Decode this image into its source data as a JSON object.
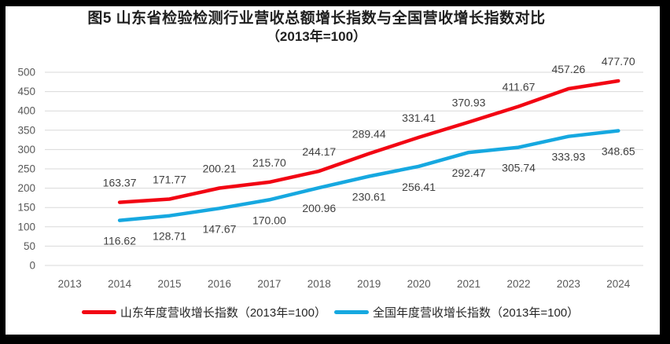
{
  "title": {
    "line1": "图5  山东省检验检测行业营收总额增长指数与全国营收增长指数对比",
    "line2": "（2013年=100）"
  },
  "colors": {
    "frame": "#000000",
    "background": "#FFFFFF",
    "gridline": "#D9D9D9",
    "axis_text": "#595959",
    "data_label_text": "#404040",
    "title_text": "#1F1F1F",
    "legend_text": "#262626",
    "shandong_red": "#F20613",
    "national_blue": "#16A8E0"
  },
  "chart_data": {
    "type": "line",
    "title": "图5 山东省检验检测行业营收总额增长指数与全国营收增长指数对比（2013年=100）",
    "categories": [
      2013,
      2014,
      2015,
      2016,
      2017,
      2018,
      2019,
      2020,
      2021,
      2022,
      2023,
      2024
    ],
    "xlabel": "",
    "ylabel": "",
    "ylim": [
      0,
      500
    ],
    "ytick_step": 50,
    "grid": true,
    "legend_position": "bottom",
    "series": [
      {
        "name": "山东年度营收增长指数（2013年=100）",
        "color": "#F20613",
        "start_year": 2014,
        "values": [
          163.37,
          171.77,
          200.21,
          215.7,
          244.17,
          289.44,
          331.41,
          370.93,
          411.67,
          457.26,
          477.7
        ],
        "label_dy": -20
      },
      {
        "name": "全国年度营收增长指数（2013年=100）",
        "color": "#16A8E0",
        "start_year": 2014,
        "values": [
          116.62,
          128.71,
          147.67,
          170.0,
          200.96,
          230.61,
          256.41,
          292.47,
          305.74,
          333.93,
          348.65
        ],
        "label_dy": 31
      }
    ]
  }
}
